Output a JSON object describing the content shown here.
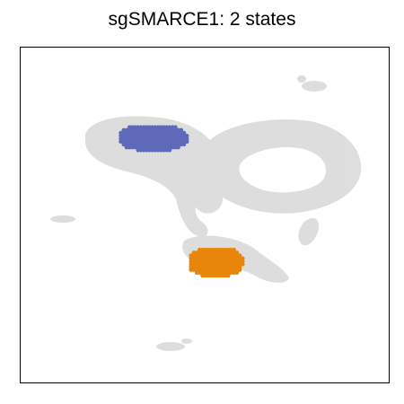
{
  "chart_data": {
    "type": "scatter",
    "title": "sgSMARCE1: 2 states",
    "xlabel": "",
    "ylabel": "",
    "axes_ticks": "none",
    "grid": false,
    "legend": "none",
    "background_points_color": "#d9d9d9",
    "series": [
      {
        "name": "",
        "role": "state-1",
        "color": "#5f69b9",
        "cluster": {
          "cx": 0.36,
          "cy": 0.73,
          "w": 0.19,
          "h": 0.08
        }
      },
      {
        "name": "",
        "role": "state-2",
        "color": "#e8860c",
        "cluster": {
          "cx": 0.53,
          "cy": 0.36,
          "w": 0.15,
          "h": 0.09
        }
      }
    ]
  }
}
